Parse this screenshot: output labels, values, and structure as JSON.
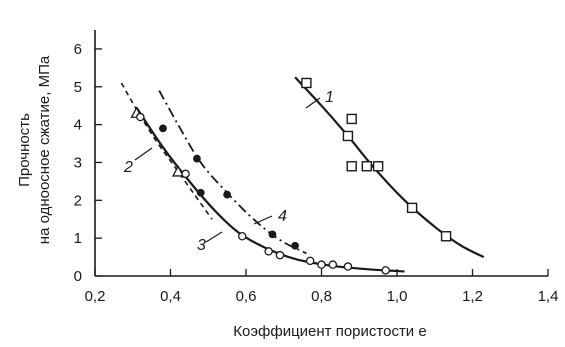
{
  "chart_data": {
    "type": "scatter",
    "xlabel": "Коэффициент пористости e",
    "ylabel_line1": "Прочность",
    "ylabel_line2": "на одноосное сжатие, МПа",
    "xlim": [
      0.2,
      1.4
    ],
    "ylim": [
      0,
      6.5
    ],
    "x_ticks": [
      "0,2",
      "0,4",
      "0,6",
      "0,8",
      "1,0",
      "1,2",
      "1,4"
    ],
    "y_ticks": [
      "0",
      "1",
      "2",
      "3",
      "4",
      "5",
      "6"
    ],
    "grid": false,
    "series": [
      {
        "name": "1",
        "marker": "square",
        "line": "solid",
        "points": [
          [
            0.76,
            5.1
          ],
          [
            0.87,
            3.7
          ],
          [
            0.88,
            4.15
          ],
          [
            0.88,
            2.9
          ],
          [
            0.92,
            2.9
          ],
          [
            0.95,
            2.9
          ],
          [
            1.04,
            1.8
          ],
          [
            1.13,
            1.05
          ]
        ],
        "curve": [
          [
            0.73,
            5.25
          ],
          [
            0.8,
            4.5
          ],
          [
            0.87,
            3.7
          ],
          [
            0.94,
            2.85
          ],
          [
            1.02,
            2.0
          ],
          [
            1.1,
            1.3
          ],
          [
            1.17,
            0.8
          ],
          [
            1.23,
            0.5
          ]
        ]
      },
      {
        "name": "2",
        "marker": "triangle",
        "line": "dashed",
        "points": [
          [
            0.31,
            4.3
          ],
          [
            0.42,
            2.75
          ]
        ],
        "curve": [
          [
            0.27,
            5.1
          ],
          [
            0.31,
            4.4
          ],
          [
            0.36,
            3.6
          ],
          [
            0.41,
            2.9
          ],
          [
            0.46,
            2.2
          ],
          [
            0.51,
            1.5
          ]
        ]
      },
      {
        "name": "3",
        "marker": "circle-open",
        "line": "solid",
        "points": [
          [
            0.32,
            4.2
          ],
          [
            0.44,
            2.7
          ],
          [
            0.59,
            1.05
          ],
          [
            0.66,
            0.65
          ],
          [
            0.69,
            0.55
          ],
          [
            0.77,
            0.4
          ],
          [
            0.8,
            0.3
          ],
          [
            0.83,
            0.3
          ],
          [
            0.87,
            0.25
          ],
          [
            0.97,
            0.15
          ]
        ],
        "curve": [
          [
            0.31,
            4.45
          ],
          [
            0.38,
            3.4
          ],
          [
            0.45,
            2.5
          ],
          [
            0.52,
            1.7
          ],
          [
            0.58,
            1.15
          ],
          [
            0.65,
            0.75
          ],
          [
            0.73,
            0.45
          ],
          [
            0.82,
            0.28
          ],
          [
            0.92,
            0.18
          ],
          [
            1.02,
            0.12
          ]
        ]
      },
      {
        "name": "4",
        "marker": "circle-filled",
        "line": "dashdot",
        "points": [
          [
            0.38,
            3.9
          ],
          [
            0.47,
            3.1
          ],
          [
            0.48,
            2.2
          ],
          [
            0.55,
            2.15
          ],
          [
            0.67,
            1.1
          ],
          [
            0.73,
            0.8
          ]
        ],
        "curve": [
          [
            0.37,
            4.9
          ],
          [
            0.42,
            4.0
          ],
          [
            0.48,
            3.0
          ],
          [
            0.55,
            2.2
          ],
          [
            0.62,
            1.5
          ],
          [
            0.69,
            0.95
          ],
          [
            0.76,
            0.6
          ]
        ]
      }
    ],
    "labels": [
      {
        "text": "1",
        "series": "1"
      },
      {
        "text": "2",
        "series": "2"
      },
      {
        "text": "3",
        "series": "3"
      },
      {
        "text": "4",
        "series": "4"
      }
    ]
  }
}
